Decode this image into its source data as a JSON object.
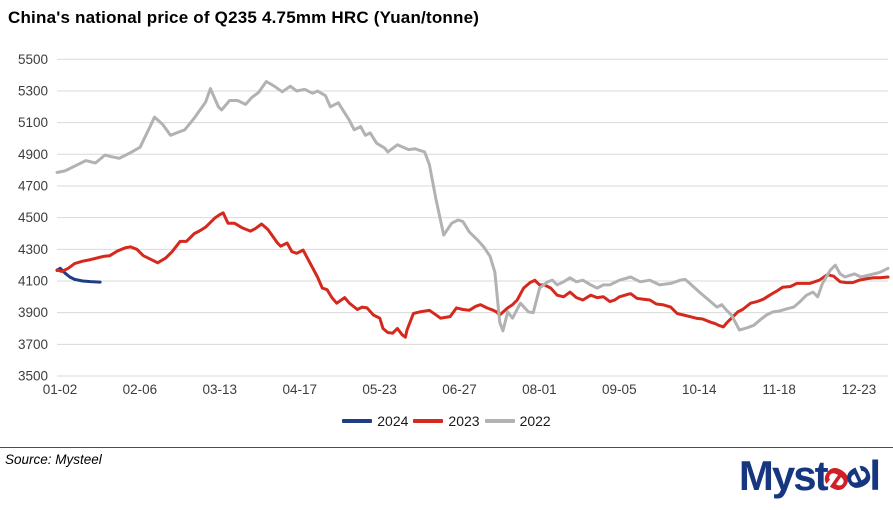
{
  "title": "China's national price of Q235 4.75mm HRC (Yuan/tonne)",
  "source_note": "Source: Mysteel",
  "logo": {
    "part_myst": "Myst",
    "part_e1": "e",
    "part_e2": "e",
    "part_l": "l"
  },
  "colors": {
    "s2024": "#1f3d85",
    "s2023": "#d5291d",
    "s2022": "#b2b2b2",
    "grid": "#d9d9d9",
    "tick_text": "#3d3d3d",
    "logo_navy": "#16377f",
    "logo_red": "#d01f27"
  },
  "chart_data": {
    "type": "line",
    "title": "China's national price of Q235 4.75mm HRC (Yuan/tonne)",
    "xlabel": "",
    "ylabel": "Yuan/tonne",
    "ylim": [
      3500,
      5500
    ],
    "ytick_step": 200,
    "grid": "horizontal",
    "legend_position": "bottom",
    "yticks": [
      "5500",
      "5300",
      "5100",
      "4900",
      "4700",
      "4500",
      "4300",
      "4100",
      "3900",
      "3700",
      "3500"
    ],
    "xticks": [
      "01-02",
      "02-06",
      "03-13",
      "04-17",
      "05-23",
      "06-27",
      "08-01",
      "09-05",
      "10-14",
      "11-18",
      "12-23"
    ],
    "xtick_weeks": [
      0,
      5,
      10,
      15,
      20,
      25,
      30,
      35,
      40,
      45,
      50
    ],
    "xrange_weeks": 52,
    "series": [
      {
        "name": "2024",
        "color": "#1f3d85",
        "points": [
          [
            0,
            4167
          ],
          [
            0.2,
            4180
          ],
          [
            0.5,
            4150
          ],
          [
            0.8,
            4125
          ],
          [
            1.1,
            4110
          ],
          [
            1.6,
            4100
          ],
          [
            2.1,
            4096
          ],
          [
            2.7,
            4093
          ]
        ]
      },
      {
        "name": "2023",
        "color": "#d5291d",
        "points": [
          [
            0,
            4170
          ],
          [
            0.3,
            4160
          ],
          [
            0.7,
            4180
          ],
          [
            1.1,
            4210
          ],
          [
            1.6,
            4225
          ],
          [
            2.1,
            4235
          ],
          [
            2.5,
            4245
          ],
          [
            2.9,
            4255
          ],
          [
            3.3,
            4260
          ],
          [
            3.8,
            4290
          ],
          [
            4.3,
            4310
          ],
          [
            4.6,
            4315
          ],
          [
            5,
            4300
          ],
          [
            5.4,
            4260
          ],
          [
            5.8,
            4240
          ],
          [
            6.3,
            4215
          ],
          [
            6.8,
            4245
          ],
          [
            7.2,
            4285
          ],
          [
            7.7,
            4350
          ],
          [
            8.1,
            4350
          ],
          [
            8.6,
            4400
          ],
          [
            8.9,
            4415
          ],
          [
            9.3,
            4440
          ],
          [
            9.6,
            4470
          ],
          [
            9.9,
            4500
          ],
          [
            10.2,
            4520
          ],
          [
            10.4,
            4530
          ],
          [
            10.7,
            4465
          ],
          [
            11.1,
            4465
          ],
          [
            11.6,
            4435
          ],
          [
            12.1,
            4415
          ],
          [
            12.4,
            4430
          ],
          [
            12.8,
            4460
          ],
          [
            13.2,
            4425
          ],
          [
            13.8,
            4340
          ],
          [
            14,
            4320
          ],
          [
            14.4,
            4340
          ],
          [
            14.7,
            4285
          ],
          [
            15,
            4275
          ],
          [
            15.4,
            4295
          ],
          [
            15.8,
            4220
          ],
          [
            16.3,
            4125
          ],
          [
            16.6,
            4055
          ],
          [
            16.9,
            4045
          ],
          [
            17.2,
            3995
          ],
          [
            17.5,
            3960
          ],
          [
            18,
            3995
          ],
          [
            18.3,
            3960
          ],
          [
            18.8,
            3920
          ],
          [
            19.1,
            3935
          ],
          [
            19.4,
            3930
          ],
          [
            19.8,
            3885
          ],
          [
            20.2,
            3865
          ],
          [
            20.4,
            3800
          ],
          [
            20.7,
            3775
          ],
          [
            21,
            3770
          ],
          [
            21.3,
            3800
          ],
          [
            21.6,
            3760
          ],
          [
            21.8,
            3745
          ],
          [
            21.9,
            3790
          ],
          [
            22.3,
            3895
          ],
          [
            22.7,
            3905
          ],
          [
            23,
            3910
          ],
          [
            23.3,
            3915
          ],
          [
            23.8,
            3880
          ],
          [
            24,
            3865
          ],
          [
            24.3,
            3870
          ],
          [
            24.6,
            3875
          ],
          [
            25,
            3930
          ],
          [
            25.4,
            3920
          ],
          [
            25.8,
            3915
          ],
          [
            26.2,
            3940
          ],
          [
            26.5,
            3950
          ],
          [
            26.9,
            3930
          ],
          [
            27.3,
            3915
          ],
          [
            27.5,
            3905
          ],
          [
            27.7,
            3885
          ],
          [
            28.2,
            3930
          ],
          [
            28.5,
            3950
          ],
          [
            28.8,
            3980
          ],
          [
            29.2,
            4055
          ],
          [
            29.6,
            4090
          ],
          [
            29.9,
            4105
          ],
          [
            30.2,
            4075
          ],
          [
            30.5,
            4075
          ],
          [
            30.9,
            4055
          ],
          [
            31.3,
            4010
          ],
          [
            31.7,
            4000
          ],
          [
            32.1,
            4030
          ],
          [
            32.5,
            3995
          ],
          [
            32.9,
            3980
          ],
          [
            33.4,
            4010
          ],
          [
            33.8,
            3995
          ],
          [
            34.2,
            4000
          ],
          [
            34.6,
            3970
          ],
          [
            34.9,
            3980
          ],
          [
            35.2,
            4000
          ],
          [
            35.7,
            4015
          ],
          [
            35.9,
            4020
          ],
          [
            36.3,
            3990
          ],
          [
            36.7,
            3985
          ],
          [
            37.1,
            3980
          ],
          [
            37.5,
            3955
          ],
          [
            37.9,
            3950
          ],
          [
            38.4,
            3935
          ],
          [
            38.8,
            3895
          ],
          [
            39.2,
            3885
          ],
          [
            39.6,
            3875
          ],
          [
            40,
            3865
          ],
          [
            40.4,
            3860
          ],
          [
            40.9,
            3840
          ],
          [
            41.2,
            3830
          ],
          [
            41.4,
            3820
          ],
          [
            41.7,
            3810
          ],
          [
            41.9,
            3835
          ],
          [
            42.1,
            3855
          ],
          [
            42.6,
            3905
          ],
          [
            42.9,
            3920
          ],
          [
            43.4,
            3960
          ],
          [
            43.8,
            3970
          ],
          [
            44.2,
            3985
          ],
          [
            44.6,
            4010
          ],
          [
            45.1,
            4040
          ],
          [
            45.4,
            4060
          ],
          [
            45.9,
            4065
          ],
          [
            46.3,
            4085
          ],
          [
            46.7,
            4085
          ],
          [
            47.1,
            4085
          ],
          [
            47.4,
            4095
          ],
          [
            47.7,
            4105
          ],
          [
            48.2,
            4140
          ],
          [
            48.6,
            4130
          ],
          [
            49,
            4095
          ],
          [
            49.4,
            4090
          ],
          [
            49.8,
            4090
          ],
          [
            50.2,
            4105
          ],
          [
            50.7,
            4115
          ],
          [
            51.1,
            4120
          ],
          [
            51.5,
            4120
          ],
          [
            52,
            4125
          ]
        ]
      },
      {
        "name": "2022",
        "color": "#b2b2b2",
        "points": [
          [
            0,
            4785
          ],
          [
            0.5,
            4795
          ],
          [
            1.1,
            4825
          ],
          [
            1.8,
            4860
          ],
          [
            2.4,
            4845
          ],
          [
            3,
            4895
          ],
          [
            3.4,
            4885
          ],
          [
            3.9,
            4875
          ],
          [
            4.6,
            4910
          ],
          [
            5.2,
            4945
          ],
          [
            5.8,
            5070
          ],
          [
            6.1,
            5135
          ],
          [
            6.6,
            5090
          ],
          [
            7.1,
            5020
          ],
          [
            7.6,
            5040
          ],
          [
            8,
            5055
          ],
          [
            8.6,
            5130
          ],
          [
            9.3,
            5230
          ],
          [
            9.6,
            5315
          ],
          [
            10.1,
            5200
          ],
          [
            10.3,
            5180
          ],
          [
            10.8,
            5240
          ],
          [
            11.3,
            5240
          ],
          [
            11.8,
            5215
          ],
          [
            12.2,
            5260
          ],
          [
            12.6,
            5290
          ],
          [
            13.1,
            5360
          ],
          [
            13.6,
            5330
          ],
          [
            14.1,
            5295
          ],
          [
            14.6,
            5330
          ],
          [
            15,
            5300
          ],
          [
            15.5,
            5310
          ],
          [
            16,
            5285
          ],
          [
            16.3,
            5300
          ],
          [
            16.8,
            5270
          ],
          [
            17.1,
            5200
          ],
          [
            17.6,
            5225
          ],
          [
            18.3,
            5115
          ],
          [
            18.6,
            5055
          ],
          [
            19,
            5075
          ],
          [
            19.3,
            5020
          ],
          [
            19.6,
            5035
          ],
          [
            20,
            4970
          ],
          [
            20.5,
            4940
          ],
          [
            20.7,
            4915
          ],
          [
            21.3,
            4960
          ],
          [
            22,
            4930
          ],
          [
            22.4,
            4935
          ],
          [
            23,
            4915
          ],
          [
            23.3,
            4835
          ],
          [
            23.7,
            4625
          ],
          [
            24.2,
            4390
          ],
          [
            24.7,
            4465
          ],
          [
            25.1,
            4485
          ],
          [
            25.4,
            4475
          ],
          [
            25.8,
            4410
          ],
          [
            26.3,
            4360
          ],
          [
            26.7,
            4315
          ],
          [
            27.1,
            4255
          ],
          [
            27.4,
            4155
          ],
          [
            27.7,
            3840
          ],
          [
            27.9,
            3785
          ],
          [
            28.2,
            3905
          ],
          [
            28.5,
            3865
          ],
          [
            29,
            3960
          ],
          [
            29.5,
            3905
          ],
          [
            29.8,
            3900
          ],
          [
            30.2,
            4055
          ],
          [
            30.7,
            4095
          ],
          [
            31,
            4105
          ],
          [
            31.3,
            4075
          ],
          [
            31.7,
            4095
          ],
          [
            32.1,
            4120
          ],
          [
            32.5,
            4095
          ],
          [
            32.9,
            4105
          ],
          [
            33.4,
            4075
          ],
          [
            33.8,
            4055
          ],
          [
            34.2,
            4075
          ],
          [
            34.6,
            4075
          ],
          [
            35.2,
            4105
          ],
          [
            35.9,
            4125
          ],
          [
            36.5,
            4095
          ],
          [
            37.1,
            4105
          ],
          [
            37.7,
            4075
          ],
          [
            38.4,
            4085
          ],
          [
            39,
            4105
          ],
          [
            39.3,
            4110
          ],
          [
            39.6,
            4085
          ],
          [
            40.2,
            4030
          ],
          [
            40.9,
            3970
          ],
          [
            41.3,
            3935
          ],
          [
            41.6,
            3950
          ],
          [
            41.9,
            3915
          ],
          [
            42.2,
            3885
          ],
          [
            42.6,
            3810
          ],
          [
            42.7,
            3790
          ],
          [
            43.2,
            3805
          ],
          [
            43.6,
            3820
          ],
          [
            44,
            3855
          ],
          [
            44.4,
            3885
          ],
          [
            44.8,
            3905
          ],
          [
            45.2,
            3910
          ],
          [
            45.7,
            3925
          ],
          [
            46.1,
            3935
          ],
          [
            46.5,
            3970
          ],
          [
            46.9,
            4010
          ],
          [
            47.3,
            4030
          ],
          [
            47.6,
            4000
          ],
          [
            47.9,
            4085
          ],
          [
            48.4,
            4170
          ],
          [
            48.7,
            4200
          ],
          [
            49,
            4145
          ],
          [
            49.3,
            4125
          ],
          [
            49.6,
            4135
          ],
          [
            49.9,
            4145
          ],
          [
            50.3,
            4125
          ],
          [
            50.7,
            4135
          ],
          [
            51.1,
            4145
          ],
          [
            51.5,
            4155
          ],
          [
            52,
            4180
          ]
        ]
      }
    ]
  }
}
